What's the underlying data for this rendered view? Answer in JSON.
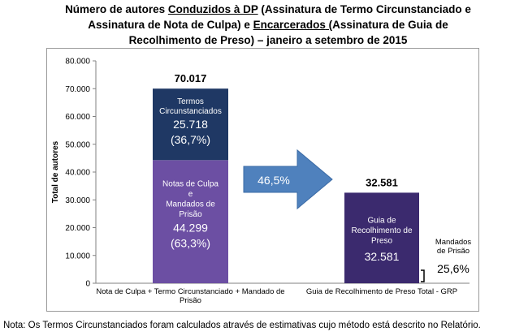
{
  "title": {
    "line1_pre": "Número de autores ",
    "line1_u": "Conduzidos à DP",
    "line1_post": " (Assinatura de Termo Circunstanciado e",
    "line2_pre": "Assinatura de Nota de Culpa) e ",
    "line2_u1": "Encarcerados",
    "line2_u2": " (",
    "line2_post": "Assinatura de Guia de",
    "line3": "Recolhimento de Preso) – janeiro a setembro de 2015"
  },
  "footnote": "Nota: Os Termos Circunstanciados foram calculados através de estimativas cujo método está descrito no Relatório.",
  "colors": {
    "tc": "#1f3864",
    "nc": "#6c4fa3",
    "grp": "#3b2a6e",
    "arrow": "#4f81bd"
  },
  "chart_data": {
    "type": "bar",
    "stacked": true,
    "ylabel": "Total de autores",
    "ylim": [
      0,
      80000
    ],
    "yticks": [
      0,
      10000,
      20000,
      30000,
      40000,
      50000,
      60000,
      70000,
      80000
    ],
    "ytick_labels": [
      "0",
      "10.000",
      "20.000",
      "30.000",
      "40.000",
      "50.000",
      "60.000",
      "70.000",
      "80.000"
    ],
    "categories": [
      [
        "Nota de Culpa + Termo Circunstanciado + Mandado de",
        "Prisão"
      ],
      [
        "Guia de Recolhimento de Preso Total - GRP"
      ]
    ],
    "bars": [
      {
        "total_label": "70.017",
        "segments": [
          {
            "name": "Notas de Culpa e Mandados de Prisão",
            "value": 44299,
            "label_lines": [
              "Notas de Culpa",
              "e",
              "Mandados de",
              "Prisão"
            ],
            "value_label": "44.299",
            "pct_label": "(63,3%)"
          },
          {
            "name": "Termos Circunstanciados",
            "value": 25718,
            "label_lines": [
              "Termos",
              "Circunstanciados"
            ],
            "value_label": "25.718",
            "pct_label": "(36,7%)"
          }
        ]
      },
      {
        "total_label": "32.581",
        "segments": [
          {
            "name": "Guia de Recolhimento de Preso",
            "value": 32581,
            "label_lines": [
              "Guia de",
              "Recolhimento de",
              "Preso"
            ],
            "value_label": "32.581"
          }
        ]
      }
    ],
    "arrow_label": "46,5%",
    "side_annotation": {
      "label_lines": [
        "Mandados",
        "de Prisão"
      ],
      "value": "25,6%"
    }
  }
}
